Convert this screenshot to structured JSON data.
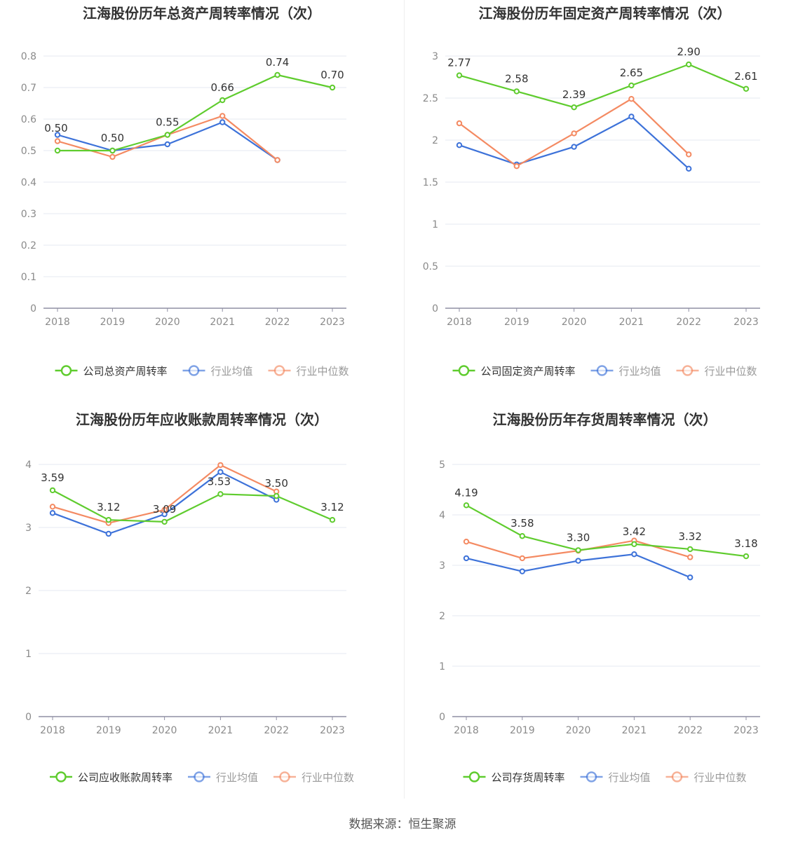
{
  "colors": {
    "company": "#5fcc2e",
    "average": "#3d72d9",
    "median": "#f48a62",
    "grid": "#e6e9f2",
    "axis": "#8f8fa3",
    "title": "#333333",
    "tick": "#8a8a8a",
    "legend_company_text": "#333333",
    "legend_other_text": "#9a9a9a"
  },
  "source_text": "数据来源：恒生聚源",
  "chart_data": [
    {
      "type": "line",
      "title": "江海股份历年总资产周转率情况（次）",
      "categories": [
        "2018",
        "2019",
        "2020",
        "2021",
        "2022",
        "2023"
      ],
      "ylim": [
        0,
        0.8
      ],
      "yticks": [
        0,
        0.1,
        0.2,
        0.3,
        0.4,
        0.5,
        0.6,
        0.7,
        0.8
      ],
      "ytick_labels": [
        "0",
        "0.1",
        "0.2",
        "0.3",
        "0.4",
        "0.5",
        "0.6",
        "0.7",
        "0.8"
      ],
      "grid": true,
      "legend_position": "bottom",
      "series": [
        {
          "name": "公司总资产周转率",
          "role": "company",
          "values": [
            0.5,
            0.5,
            0.55,
            0.66,
            0.74,
            0.7
          ],
          "labels": [
            "0.50",
            "0.50",
            "0.55",
            "0.66",
            "0.74",
            "0.70"
          ]
        },
        {
          "name": "行业均值",
          "role": "average",
          "values": [
            0.55,
            0.5,
            0.52,
            0.59,
            0.47,
            null
          ]
        },
        {
          "name": "行业中位数",
          "role": "median",
          "values": [
            0.53,
            0.48,
            0.55,
            0.61,
            0.47,
            null
          ]
        }
      ]
    },
    {
      "type": "line",
      "title": "江海股份历年固定资产周转率情况（次）",
      "categories": [
        "2018",
        "2019",
        "2020",
        "2021",
        "2022",
        "2023"
      ],
      "ylim": [
        0,
        3
      ],
      "yticks": [
        0,
        0.5,
        1,
        1.5,
        2,
        2.5,
        3
      ],
      "ytick_labels": [
        "0",
        "0.5",
        "1",
        "1.5",
        "2",
        "2.5",
        "3"
      ],
      "grid": true,
      "legend_position": "bottom",
      "series": [
        {
          "name": "公司固定资产周转率",
          "role": "company",
          "values": [
            2.77,
            2.58,
            2.39,
            2.65,
            2.9,
            2.61
          ],
          "labels": [
            "2.77",
            "2.58",
            "2.39",
            "2.65",
            "2.90",
            "2.61"
          ]
        },
        {
          "name": "行业均值",
          "role": "average",
          "values": [
            1.94,
            1.71,
            1.92,
            2.28,
            1.66,
            null
          ]
        },
        {
          "name": "行业中位数",
          "role": "median",
          "values": [
            2.2,
            1.69,
            2.08,
            2.49,
            1.83,
            null
          ]
        }
      ]
    },
    {
      "type": "line",
      "title": "江海股份历年应收账款周转率情况（次）",
      "categories": [
        "2018",
        "2019",
        "2020",
        "2021",
        "2022",
        "2023"
      ],
      "ylim": [
        0,
        4
      ],
      "yticks": [
        0,
        1,
        2,
        3,
        4
      ],
      "ytick_labels": [
        "0",
        "1",
        "2",
        "3",
        "4"
      ],
      "grid": true,
      "legend_position": "bottom",
      "series": [
        {
          "name": "公司应收账款周转率",
          "role": "company",
          "values": [
            3.59,
            3.12,
            3.09,
            3.53,
            3.5,
            3.12
          ],
          "labels": [
            "3.59",
            "3.12",
            "3.09",
            "3.53",
            "3.50",
            "3.12"
          ]
        },
        {
          "name": "行业均值",
          "role": "average",
          "values": [
            3.23,
            2.9,
            3.21,
            3.88,
            3.44,
            null
          ]
        },
        {
          "name": "行业中位数",
          "role": "median",
          "values": [
            3.33,
            3.07,
            3.28,
            3.99,
            3.57,
            null
          ]
        }
      ]
    },
    {
      "type": "line",
      "title": "江海股份历年存货周转率情况（次）",
      "categories": [
        "2018",
        "2019",
        "2020",
        "2021",
        "2022",
        "2023"
      ],
      "ylim": [
        0,
        5
      ],
      "yticks": [
        0,
        1,
        2,
        3,
        4,
        5
      ],
      "ytick_labels": [
        "0",
        "1",
        "2",
        "3",
        "4",
        "5"
      ],
      "grid": true,
      "legend_position": "bottom",
      "series": [
        {
          "name": "公司存货周转率",
          "role": "company",
          "values": [
            4.19,
            3.58,
            3.3,
            3.42,
            3.32,
            3.18
          ],
          "labels": [
            "4.19",
            "3.58",
            "3.30",
            "3.42",
            "3.32",
            "3.18"
          ]
        },
        {
          "name": "行业均值",
          "role": "average",
          "values": [
            3.14,
            2.88,
            3.09,
            3.22,
            2.76,
            null
          ]
        },
        {
          "name": "行业中位数",
          "role": "median",
          "values": [
            3.47,
            3.14,
            3.29,
            3.49,
            3.16,
            null
          ]
        }
      ]
    }
  ]
}
